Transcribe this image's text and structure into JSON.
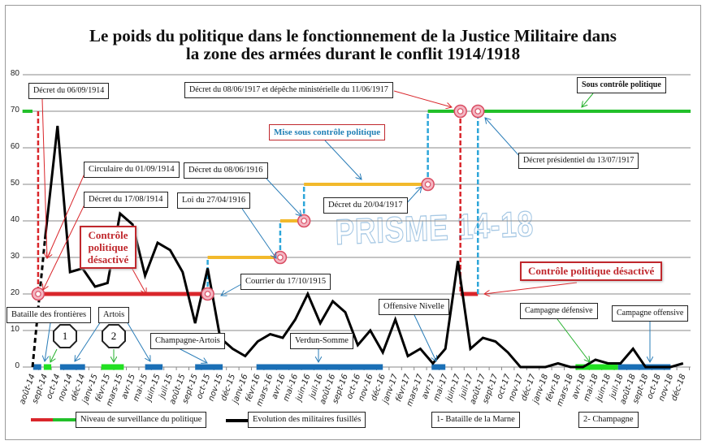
{
  "title_line1": "Le poids du politique dans le fonctionnement de la Justice Militaire dans",
  "title_line2": "la zone des armées durant le conflit 1914/1918",
  "watermark": "PRISME 14-18",
  "colors": {
    "red": "#d9262b",
    "green": "#22c02a",
    "yellow": "#f2b92b",
    "blue_dash": "#2ea6d9",
    "campaign_blue": "#1a6fb6",
    "campaign_green": "#22e022",
    "black": "#000000"
  },
  "annotations": {
    "decret_06_09_1914": "Décret du 06/09/1914",
    "circulaire_01_09_1914": "Circulaire du 01/09/1914",
    "decret_17_08_1914": "Décret du 17/08/1914",
    "controle_desactive_1": "Contrôle politique désactivé",
    "decret_08_06_1916": "Décret du 08/06/1916",
    "loi_27_04_1916": "Loi du 27/04/1916",
    "mise_sous_controle": "Mise sous contrôle politique",
    "decret_20_04_1917": "Décret du 20/04/1917",
    "decret_08_06_1917": "Décret du 08/06/1917 et dépêche ministérielle du 11/06/1917",
    "sous_controle": "Sous contrôle politique",
    "decret_presidentiel": "Décret présidentiel du 13/07/1917",
    "courrier_17_10_1915": "Courrier du 17/10/1915",
    "controle_desactive_2": "Contrôle politique désactivé",
    "bataille_frontieres": "Bataille des frontières",
    "artois": "Artois",
    "champagne_artois": "Champagne-Artois",
    "verdun_somme": "Verdun-Somme",
    "offensive_nivelle": "Offensive Nivelle",
    "campagne_defensive": "Campagne défensive",
    "campagne_offensive": "Campagne offensive",
    "marker_1": "1",
    "marker_2": "2"
  },
  "legend": {
    "politique": "Niveau de surveillance du politique",
    "fusilles": "Evolution des militaires fusillés",
    "note_1": "1- Bataille de la Marne",
    "note_2": "2- Champagne"
  },
  "chart_data": {
    "type": "line",
    "title": "Le poids du politique dans le fonctionnement de la Justice Militaire dans la zone des armées durant le conflit 1914/1918",
    "ylim": [
      0,
      80
    ],
    "yticks": [
      "0",
      "10",
      "20",
      "30",
      "40",
      "50",
      "60",
      "70",
      "80"
    ],
    "grid": true,
    "legend_position": "bottom",
    "categories": [
      "août-14",
      "sept-14",
      "oct-14",
      "nov-14",
      "déc-14",
      "janv-15",
      "févr-15",
      "mars-15",
      "avr-15",
      "mai-15",
      "juin-15",
      "juil-15",
      "août-15",
      "sept-15",
      "oct-15",
      "nov-15",
      "déc-15",
      "janv-16",
      "févr-16",
      "mars-16",
      "avr-16",
      "mai-16",
      "juin-16",
      "juil-16",
      "août-16",
      "sept-16",
      "oct-16",
      "nov-16",
      "déc-16",
      "janv-17",
      "févr-17",
      "mars-17",
      "avr-17",
      "mai-17",
      "juin-17",
      "juil-17",
      "août-17",
      "sept-17",
      "oct-17",
      "nov-17",
      "déc-17",
      "janv-18",
      "févr-18",
      "mars-18",
      "avr-18",
      "mai-18",
      "juin-18",
      "juil-18",
      "août-18",
      "sept-18",
      "oct-18",
      "nov-18",
      "déc-18"
    ],
    "series": [
      {
        "name": "Evolution des militaires fusillés",
        "values": [
          0,
          35,
          66,
          26,
          27,
          22,
          23,
          42,
          39,
          25,
          34,
          32,
          26,
          12,
          27,
          8,
          5,
          3,
          7,
          9,
          8,
          13,
          20,
          12,
          18,
          15,
          6,
          10,
          4,
          13,
          3,
          5,
          1,
          5,
          29,
          5,
          8,
          7,
          4,
          0,
          0,
          0,
          1,
          0,
          0,
          2,
          1,
          1,
          5,
          0,
          0,
          0,
          1
        ]
      }
    ],
    "political_level": [
      {
        "from": -0.8,
        "to": 0,
        "value": 70,
        "color": "green"
      },
      {
        "from": 0.45,
        "to": 14.0,
        "value": 20,
        "color": "red"
      },
      {
        "from": 14.0,
        "to": 19.8,
        "value": 30,
        "color": "yellow"
      },
      {
        "from": 19.8,
        "to": 21.7,
        "value": 40,
        "color": "yellow"
      },
      {
        "from": 21.7,
        "to": 31.6,
        "value": 50,
        "color": "yellow"
      },
      {
        "from": 31.6,
        "to": 34.2,
        "value": 70,
        "color": "green"
      },
      {
        "from": 34.2,
        "to": 35.6,
        "value": 20,
        "color": "red"
      },
      {
        "from": 35.6,
        "to": 52.6,
        "value": 70,
        "color": "green"
      }
    ],
    "campaigns": [
      {
        "from": 0.05,
        "to": 0.7,
        "color": "blue"
      },
      {
        "from": 0.9,
        "to": 1.5,
        "color": "green"
      },
      {
        "from": 2.2,
        "to": 4.2,
        "color": "blue"
      },
      {
        "from": 5.5,
        "to": 7.3,
        "color": "green"
      },
      {
        "from": 9.0,
        "to": 10.4,
        "color": "blue"
      },
      {
        "from": 13.0,
        "to": 15.2,
        "color": "blue"
      },
      {
        "from": 17.9,
        "to": 28.0,
        "color": "blue"
      },
      {
        "from": 31.9,
        "to": 33.0,
        "color": "blue"
      },
      {
        "from": 43.4,
        "to": 46.8,
        "color": "green"
      },
      {
        "from": 46.8,
        "to": 51.0,
        "color": "blue"
      }
    ],
    "event_markers": [
      {
        "x": 0.45,
        "value": 20
      },
      {
        "x": 14.0,
        "value": 20
      },
      {
        "x": 19.8,
        "value": 30
      },
      {
        "x": 21.7,
        "value": 40
      },
      {
        "x": 31.6,
        "value": 50
      },
      {
        "x": 34.2,
        "value": 70
      },
      {
        "x": 35.6,
        "value": 70
      }
    ]
  }
}
